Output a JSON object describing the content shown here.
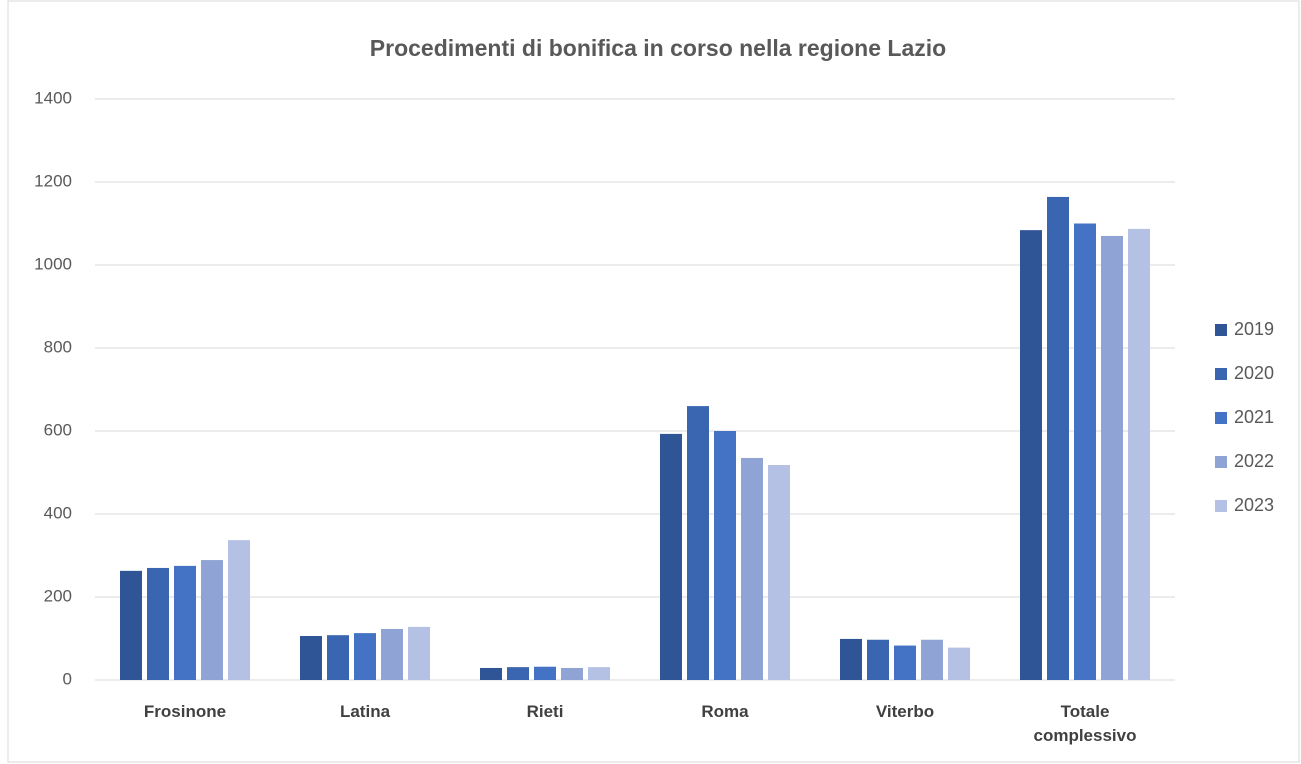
{
  "chart_data": {
    "type": "bar",
    "title": "Procedimenti di bonifica in corso nella regione Lazio",
    "categories": [
      "Frosinone",
      "Latina",
      "Rieti",
      "Roma",
      "Viterbo",
      "Totale complessivo"
    ],
    "series": [
      {
        "name": "2019",
        "color": "#2f5597",
        "values": [
          263,
          106,
          29,
          593,
          99,
          1084
        ]
      },
      {
        "name": "2020",
        "color": "#3a65b0",
        "values": [
          270,
          108,
          31,
          660,
          97,
          1164
        ]
      },
      {
        "name": "2021",
        "color": "#4472c4",
        "values": [
          275,
          113,
          32,
          600,
          83,
          1100
        ]
      },
      {
        "name": "2022",
        "color": "#8fa4d4",
        "values": [
          289,
          123,
          29,
          535,
          97,
          1070
        ]
      },
      {
        "name": "2023",
        "color": "#b4c0e4",
        "values": [
          337,
          128,
          31,
          518,
          78,
          1087
        ]
      }
    ],
    "ylim": [
      0,
      1400
    ],
    "yticks": [
      0,
      200,
      400,
      600,
      800,
      1000,
      1200,
      1400
    ],
    "grid": true,
    "legend": "right"
  }
}
